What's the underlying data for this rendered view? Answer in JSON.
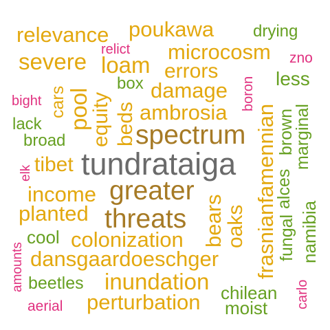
{
  "colors": {
    "gold": "#e3a80f",
    "brown": "#a67a25",
    "gray": "#6a6a6a",
    "green": "#66a022",
    "pink": "#e0307f",
    "background": "#ffffff"
  },
  "words": {
    "tundrataiga": "tundrataiga",
    "spectrum": "spectrum",
    "greater": "greater",
    "threats": "threats",
    "relevance": "relevance",
    "poukawa": "poukawa",
    "drying": "drying",
    "relict": "relict",
    "microcosm": "microcosm",
    "zno": "zno",
    "severe": "severe",
    "loam": "loam",
    "errors": "errors",
    "less": "less",
    "boron": "boron",
    "box": "box",
    "damage": "damage",
    "bight": "bight",
    "cars": "cars",
    "pool": "pool",
    "equity": "equity",
    "beds": "beds",
    "ambrosia": "ambrosia",
    "brown": "brown",
    "marginal": "marginal",
    "lack": "lack",
    "broad": "broad",
    "fasnianfamennian": "frasnianfamennian",
    "tibet": "tibet",
    "elk": "elk",
    "alces": "alces",
    "income": "income",
    "bears": "bears",
    "oaks": "oaks",
    "namibia": "namibia",
    "planted": "planted",
    "fungal": "fungal",
    "amounts": "amounts",
    "cool": "cool",
    "colonization": "colonization",
    "dansgaardoeschger": "dansgaardoeschger",
    "beetles": "beetles",
    "inundation": "inundation",
    "chilean": "chilean",
    "carlo": "carlo",
    "aerial": "aerial",
    "perturbation": "perturbation",
    "moist": "moist"
  }
}
